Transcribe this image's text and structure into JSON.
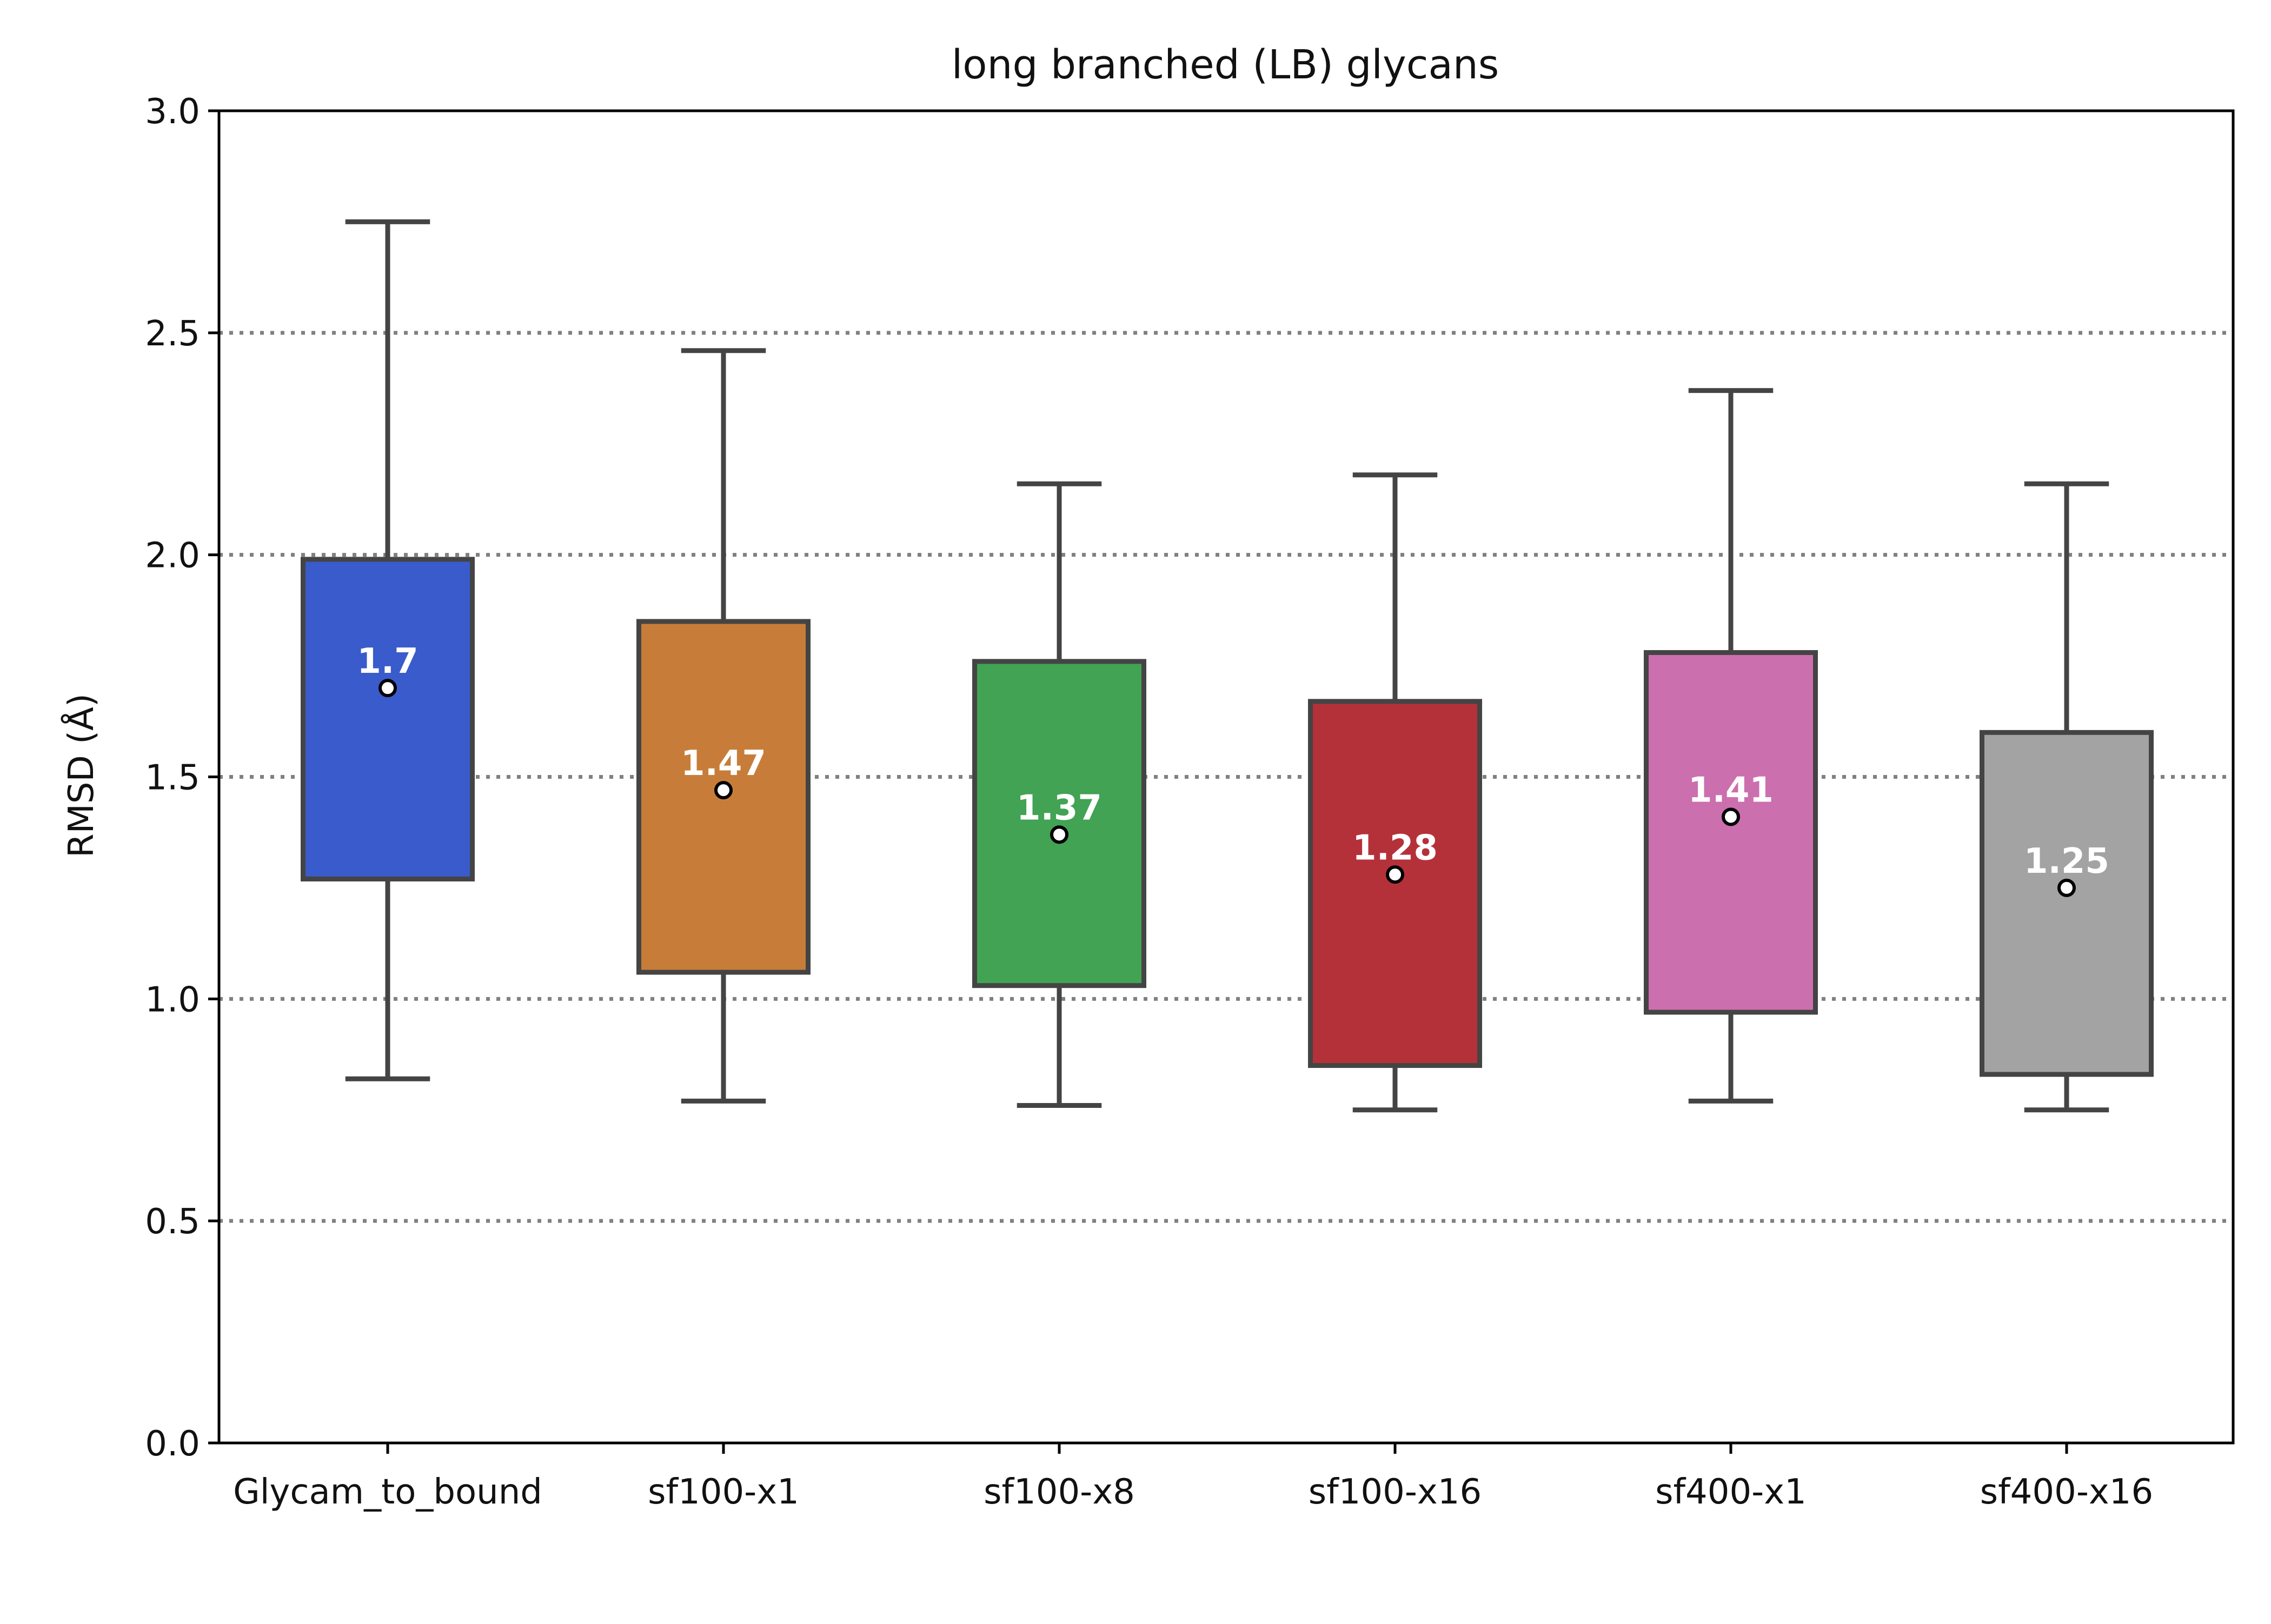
{
  "chart_data": {
    "type": "box",
    "title": "long branched (LB) glycans",
    "xlabel": "",
    "ylabel": "RMSD (Å)",
    "ylim": [
      0,
      3.0
    ],
    "yticks": [
      {
        "value": 0.0,
        "label": "0.0"
      },
      {
        "value": 0.5,
        "label": "0.5"
      },
      {
        "value": 1.0,
        "label": "1.0"
      },
      {
        "value": 1.5,
        "label": "1.5"
      },
      {
        "value": 2.0,
        "label": "2.0"
      },
      {
        "value": 2.5,
        "label": "2.5"
      },
      {
        "value": 3.0,
        "label": "3.0"
      }
    ],
    "grid": {
      "axis": "y",
      "style": "dotted",
      "lines": [
        0.5,
        1.0,
        1.5,
        2.0,
        2.5
      ]
    },
    "categories": [
      "Glycam_to_bound",
      "sf100-x1",
      "sf100-x8",
      "sf100-x16",
      "sf400-x1",
      "sf400-x16"
    ],
    "boxes": [
      {
        "whisker_low": 0.82,
        "q1": 1.27,
        "q3": 1.99,
        "whisker_high": 2.75,
        "mean": 1.7,
        "mean_label": "1.7",
        "color": "#3a5bcb"
      },
      {
        "whisker_low": 0.77,
        "q1": 1.06,
        "q3": 1.85,
        "whisker_high": 2.46,
        "mean": 1.47,
        "mean_label": "1.47",
        "color": "#c77d39"
      },
      {
        "whisker_low": 0.76,
        "q1": 1.03,
        "q3": 1.76,
        "whisker_high": 2.16,
        "mean": 1.37,
        "mean_label": "1.37",
        "color": "#41a353"
      },
      {
        "whisker_low": 0.75,
        "q1": 0.85,
        "q3": 1.67,
        "whisker_high": 2.18,
        "mean": 1.28,
        "mean_label": "1.28",
        "color": "#b53139"
      },
      {
        "whisker_low": 0.77,
        "q1": 0.97,
        "q3": 1.78,
        "whisker_high": 2.37,
        "mean": 1.41,
        "mean_label": "1.41",
        "color": "#cc6fae"
      },
      {
        "whisker_low": 0.75,
        "q1": 0.83,
        "q3": 1.6,
        "whisker_high": 2.16,
        "mean": 1.25,
        "mean_label": "1.25",
        "color": "#a3a3a3"
      }
    ],
    "line_color": "#444444",
    "grid_color": "#808080"
  }
}
